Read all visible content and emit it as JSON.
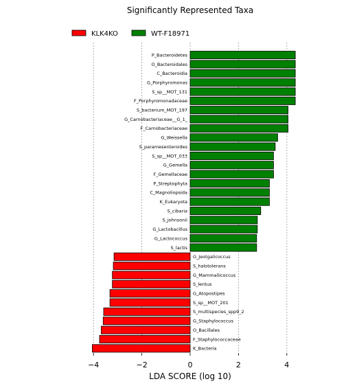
{
  "chart_data": {
    "type": "bar",
    "orientation": "horizontal",
    "title": "Significantly Represented Taxa",
    "xlabel": "LDA SCORE (log 10)",
    "ylabel": "",
    "xlim": [
      -4.1,
      4.4
    ],
    "xticks": [
      -4,
      -2,
      0,
      2,
      4
    ],
    "xtick_labels": [
      "−4",
      "−2",
      "0",
      "2",
      "4"
    ],
    "grid": true,
    "legend_position": "top",
    "series": [
      {
        "name": "KLK4KO",
        "color": "#ff0000"
      },
      {
        "name": "WT-F18971",
        "color": "#008000"
      }
    ],
    "bars": [
      {
        "label": "P_Bacteroidetes",
        "value": 4.35,
        "group": "WT-F18971"
      },
      {
        "label": "O_Bacteroidales",
        "value": 4.35,
        "group": "WT-F18971"
      },
      {
        "label": "C_Bacteroidia",
        "value": 4.35,
        "group": "WT-F18971"
      },
      {
        "label": "G_Porphyromonas",
        "value": 4.35,
        "group": "WT-F18971"
      },
      {
        "label": "S_sp__MOT_131",
        "value": 4.35,
        "group": "WT-F18971"
      },
      {
        "label": "F_Porphyromonadaceae",
        "value": 4.35,
        "group": "WT-F18971"
      },
      {
        "label": "S_bacterium_MOT_197",
        "value": 4.05,
        "group": "WT-F18971"
      },
      {
        "label": "G_Carnobacteriaceae__G_1_",
        "value": 4.05,
        "group": "WT-F18971"
      },
      {
        "label": "F_Carnobacteriaceae",
        "value": 4.05,
        "group": "WT-F18971"
      },
      {
        "label": "G_Weissella",
        "value": 3.62,
        "group": "WT-F18971"
      },
      {
        "label": "S_paramesenteroides",
        "value": 3.52,
        "group": "WT-F18971"
      },
      {
        "label": "S_sp__MOT_033",
        "value": 3.45,
        "group": "WT-F18971"
      },
      {
        "label": "G_Gemella",
        "value": 3.45,
        "group": "WT-F18971"
      },
      {
        "label": "F_Gemellaceae",
        "value": 3.45,
        "group": "WT-F18971"
      },
      {
        "label": "P_Streptophyta",
        "value": 3.28,
        "group": "WT-F18971"
      },
      {
        "label": "C_Magnoliopsida",
        "value": 3.28,
        "group": "WT-F18971"
      },
      {
        "label": "K_Eukaryota",
        "value": 3.28,
        "group": "WT-F18971"
      },
      {
        "label": "S_cibaria",
        "value": 2.92,
        "group": "WT-F18971"
      },
      {
        "label": "S_johnsonii",
        "value": 2.78,
        "group": "WT-F18971"
      },
      {
        "label": "G_Lactobacillus",
        "value": 2.78,
        "group": "WT-F18971"
      },
      {
        "label": "G_Lactococcus",
        "value": 2.75,
        "group": "WT-F18971"
      },
      {
        "label": "S_lactis",
        "value": 2.75,
        "group": "WT-F18971"
      },
      {
        "label": "G_Jeotgalicoccus",
        "value": -3.15,
        "group": "KLK4KO"
      },
      {
        "label": "S_halotolerans",
        "value": -3.18,
        "group": "KLK4KO"
      },
      {
        "label": "G_Mammaliicoccus",
        "value": -3.22,
        "group": "KLK4KO"
      },
      {
        "label": "S_lentus",
        "value": -3.22,
        "group": "KLK4KO"
      },
      {
        "label": "G_Atopostipes",
        "value": -3.32,
        "group": "KLK4KO"
      },
      {
        "label": "S_sp__MOT_201",
        "value": -3.32,
        "group": "KLK4KO"
      },
      {
        "label": "S_multispecies_spp9_2",
        "value": -3.58,
        "group": "KLK4KO"
      },
      {
        "label": "G_Staphylococcus",
        "value": -3.6,
        "group": "KLK4KO"
      },
      {
        "label": "O_Bacillales",
        "value": -3.68,
        "group": "KLK4KO"
      },
      {
        "label": "F_Staphylococcaceae",
        "value": -3.75,
        "group": "KLK4KO"
      },
      {
        "label": "K_Bacteria",
        "value": -4.05,
        "group": "KLK4KO"
      }
    ]
  }
}
